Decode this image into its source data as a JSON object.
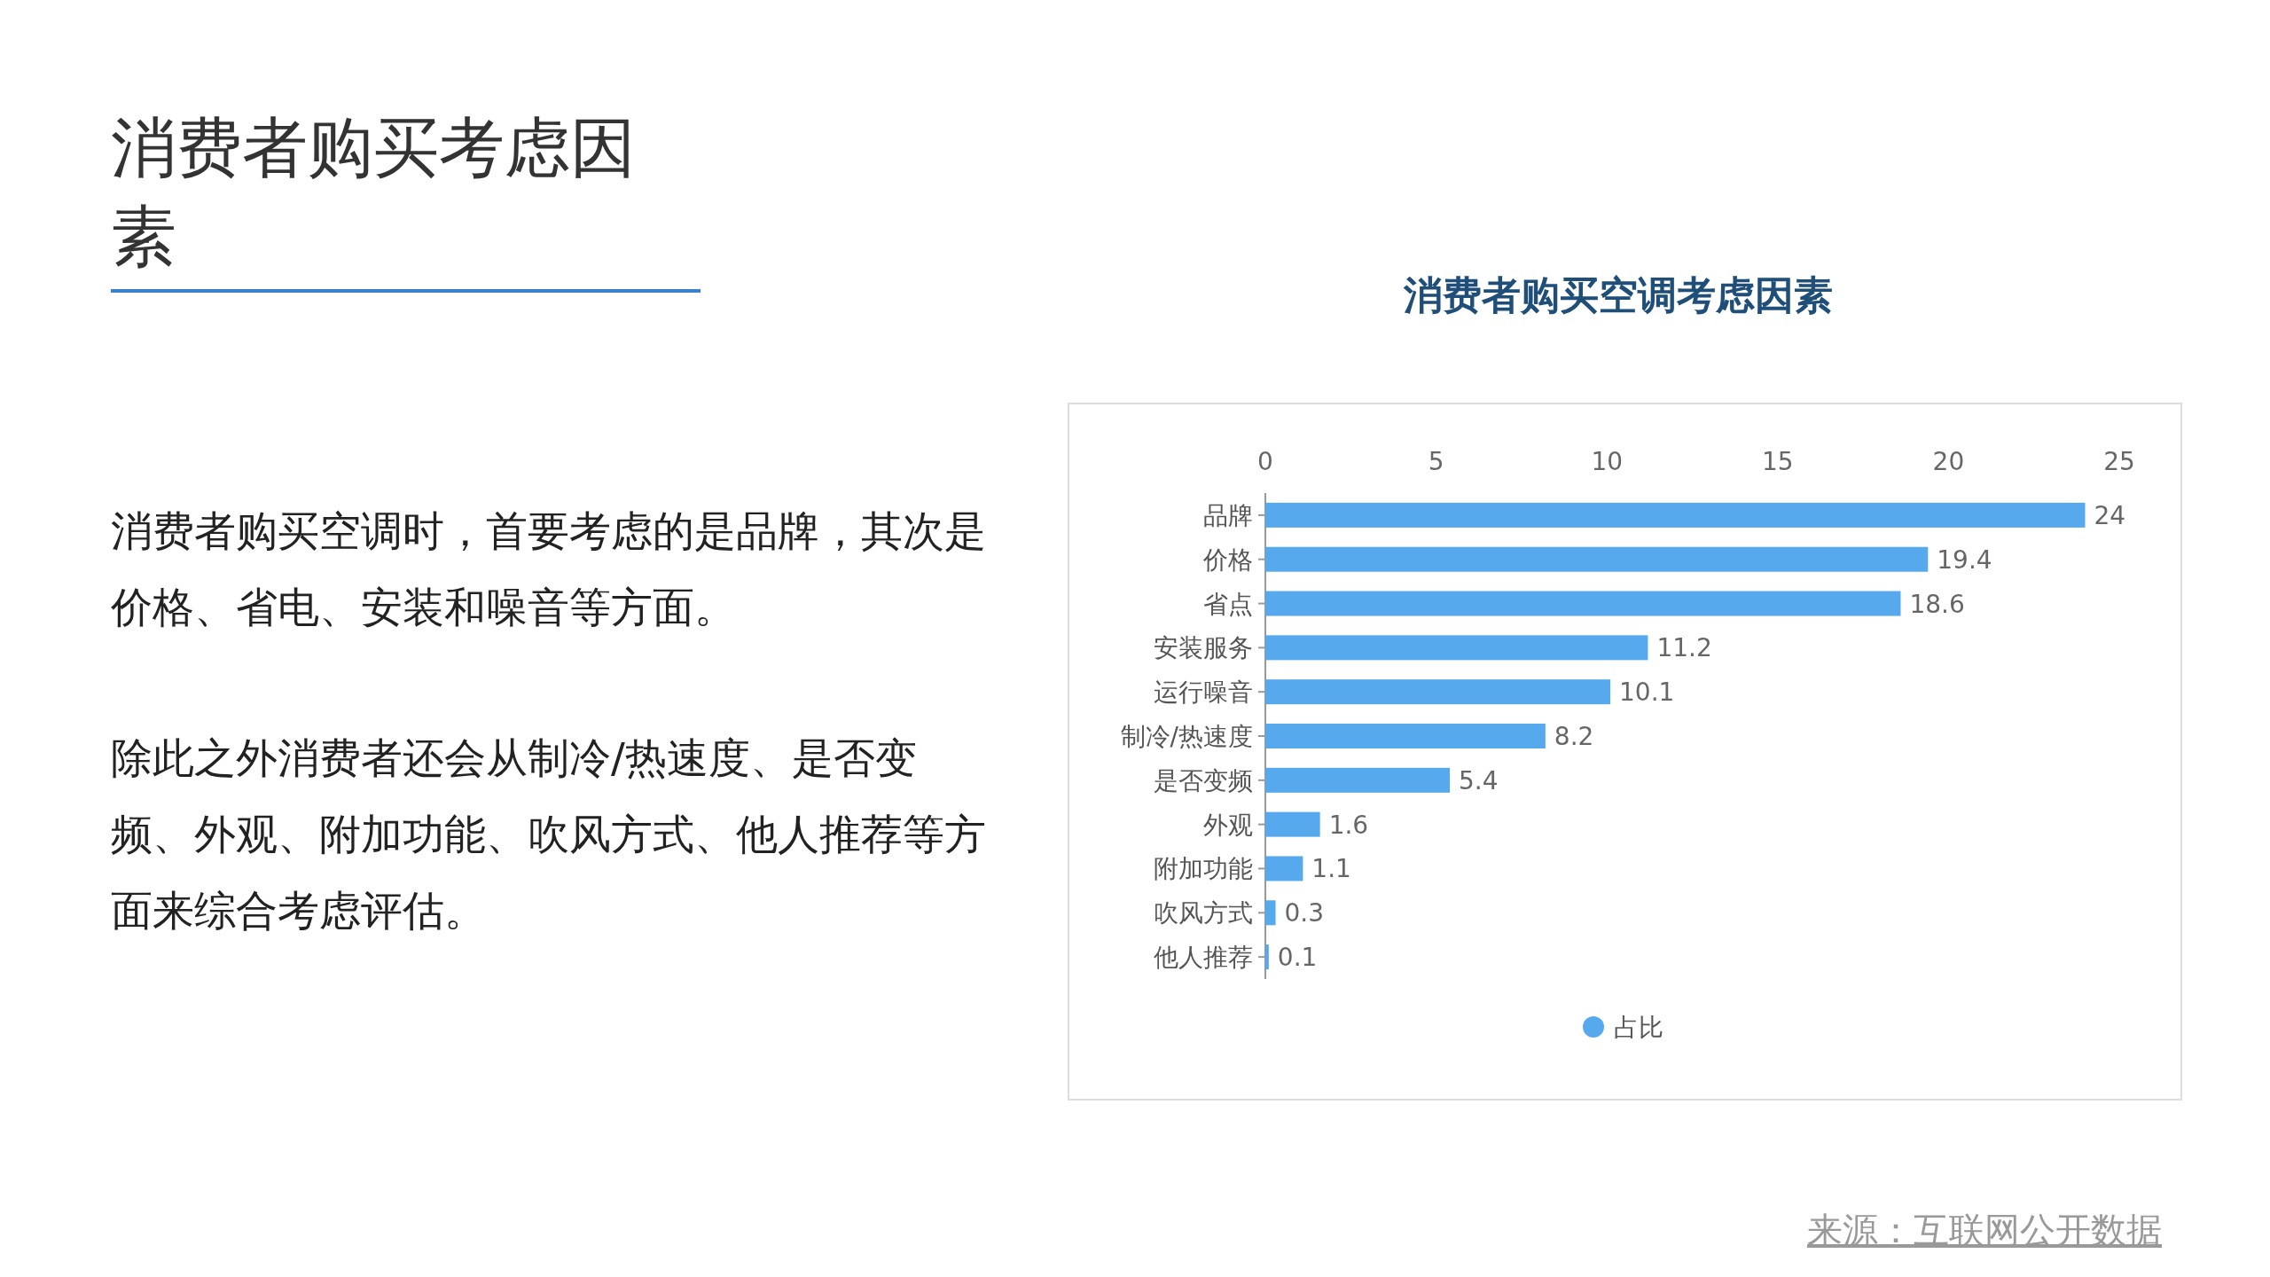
{
  "chart_data": {
    "type": "bar",
    "orientation": "horizontal",
    "title": "消费者购买空调考虑因素",
    "categories": [
      "品牌",
      "价格",
      "省点",
      "安装服务",
      "运行噪音",
      "制冷/热速度",
      "是否变频",
      "外观",
      "附加功能",
      "吹风方式",
      "他人推荐"
    ],
    "series": [
      {
        "name": "占比",
        "color": "#57a9ee",
        "values": [
          24,
          19.4,
          18.6,
          11.2,
          10.1,
          8.2,
          5.4,
          1.6,
          1.1,
          0.3,
          0.1
        ]
      }
    ],
    "xlim": [
      0,
      25
    ],
    "xticks": [
      0,
      5,
      10,
      15,
      20,
      25
    ],
    "data_labels": true,
    "legend": "bottom",
    "grid": false,
    "annotations": [
      "消费者购买考虑因素",
      "消费者购买空调时，首要考虑的是品牌，其次是价格、省电、安装和噪音等方面。",
      "除此之外消费者还会从制冷/热速度、是否变频、外观、附加功能、吹风方式、他人推荐等方面来综合考虑评估。",
      "来源：互联网公开数据"
    ]
  }
}
